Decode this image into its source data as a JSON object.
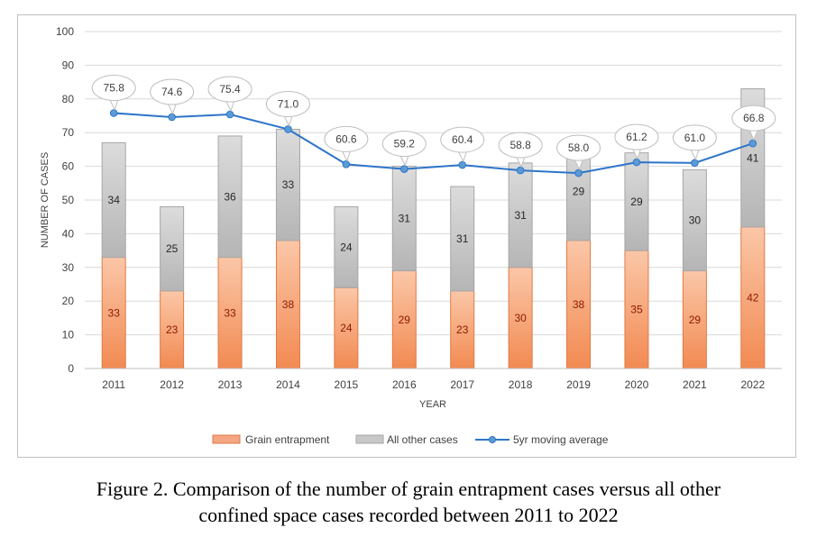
{
  "chart_data": {
    "type": "bar",
    "stacked": true,
    "categories": [
      "2011",
      "2012",
      "2013",
      "2014",
      "2015",
      "2016",
      "2017",
      "2018",
      "2019",
      "2020",
      "2021",
      "2022"
    ],
    "series": [
      {
        "name": "Grain entrapment",
        "kind": "bar",
        "color": "#f4a582",
        "values": [
          33,
          23,
          33,
          38,
          24,
          29,
          23,
          30,
          38,
          35,
          29,
          42
        ]
      },
      {
        "name": "All other cases",
        "kind": "bar",
        "color": "#c8c8c8",
        "values": [
          34,
          25,
          36,
          33,
          24,
          31,
          31,
          31,
          29,
          29,
          30,
          41
        ]
      },
      {
        "name": "5yr moving average",
        "kind": "line",
        "color": "#2e75c9",
        "values": [
          75.8,
          74.6,
          75.4,
          71.0,
          60.6,
          59.2,
          60.4,
          58.8,
          58.0,
          61.2,
          61.0,
          66.8
        ]
      }
    ],
    "avg_labels": [
      "75.8",
      "74.6",
      "75.4",
      "71.0",
      "60.6",
      "59.2",
      "60.4",
      "58.8",
      "58.0",
      "61.2",
      "61.0",
      "66.8"
    ],
    "xlabel": "YEAR",
    "ylabel": "NUMBER OF CASES",
    "ylim": [
      0,
      100
    ],
    "yticks": [
      "0",
      "10",
      "20",
      "30",
      "40",
      "50",
      "60",
      "70",
      "80",
      "90",
      "100"
    ],
    "grid": true,
    "legend_position": "bottom"
  },
  "caption": {
    "line1": "Figure 2. Comparison of the number of grain entrapment cases versus all other",
    "line2": "confined space cases recorded between 2011 to 2022"
  }
}
